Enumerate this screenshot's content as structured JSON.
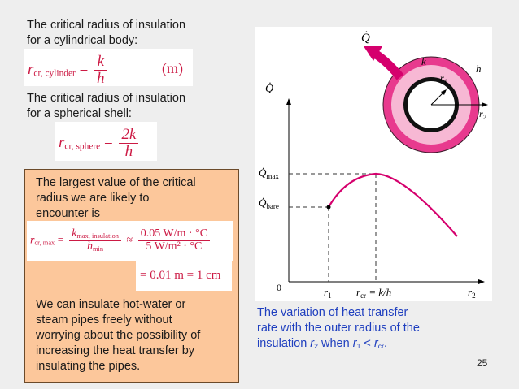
{
  "cylinder": {
    "line1": "The critical radius of insulation",
    "line2": "for a cylindrical body:",
    "lhs": "r",
    "lhs_sub": "cr, cylinder",
    "numerator": "k",
    "denominator": "h",
    "unit": "(m)"
  },
  "sphere": {
    "line1": "The critical radius of insulation",
    "line2": "for a spherical shell:",
    "lhs": "r",
    "lhs_sub": "cr, sphere",
    "numerator": "2k",
    "denominator": "h"
  },
  "box": {
    "line1": "The largest value of the critical",
    "line2": "radius we are likely to",
    "line3": "encounter is",
    "lhs": "r",
    "lhs_sub": "cr, max",
    "frac1_num": "k",
    "frac1_num_sub": "max, insulation",
    "frac1_den": "h",
    "frac1_den_sub": "min",
    "approx": "≈",
    "frac2_num": "0.05 W/m · °C",
    "frac2_den": "5 W/m² · °C",
    "result": "= 0.01 m = 1 cm",
    "para": [
      "We can insulate hot-water or",
      "steam pipes freely without",
      "worrying about the possibility of",
      "increasing the heat transfer by",
      "insulating the pipes."
    ]
  },
  "figure": {
    "q_dot": "Q̇",
    "k": "k",
    "h": "h",
    "r1": "r",
    "r1_sub": "1",
    "r2": "r",
    "r2_sub": "2",
    "q_axis": "Q̇",
    "q_max": "Q̇",
    "q_max_sub": "max",
    "q_bare": "Q̇",
    "q_bare_sub": "bare",
    "zero": "0",
    "x_r1": "r",
    "x_r1_sub": "1",
    "x_rcr": "r",
    "x_rcr_sub": "cr",
    "x_rcr_tail": " = k/h",
    "x_r2": "r",
    "x_r2_sub": "2",
    "ring_color": "#e83a8e",
    "curve_color": "#d5006d"
  },
  "caption": {
    "line1": "The variation of heat transfer",
    "line2": "rate with the outer radius of the",
    "line3_pre": "insulation ",
    "line3_r2": "r",
    "line3_r2_sub": "2",
    "line3_mid": " when ",
    "line3_r1": "r",
    "line3_r1_sub": "1",
    "line3_lt": " < ",
    "line3_rcr": "r",
    "line3_rcr_sub": "cr",
    "line3_end": "."
  },
  "page_number": "25"
}
